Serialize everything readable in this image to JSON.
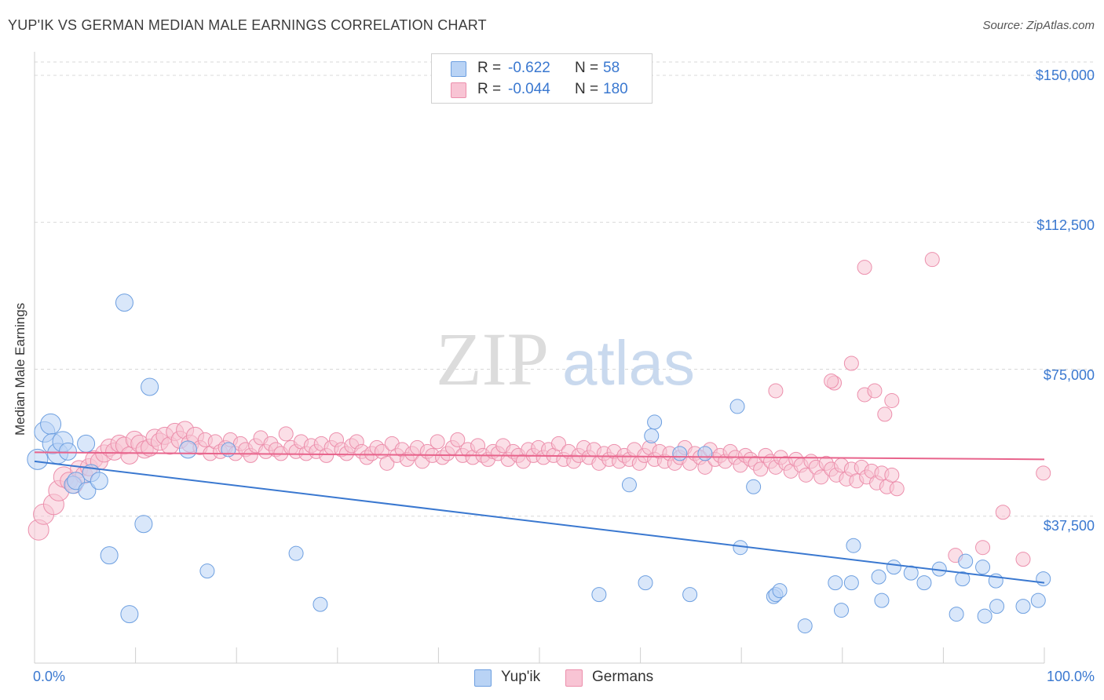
{
  "title": "YUP'IK VS GERMAN MEDIAN MALE EARNINGS CORRELATION CHART",
  "source": "Source: ZipAtlas.com",
  "watermark": {
    "zip": "ZIP",
    "atlas": "atlas"
  },
  "colors": {
    "blue": "#3a78d0",
    "blue_fill": "#b9d3f5",
    "blue_stroke": "#6d9fe0",
    "pink": "#e8648c",
    "pink_fill": "#f8c4d4",
    "pink_stroke": "#ec8fac",
    "grid": "#d8d8d8"
  },
  "legend": {
    "rows": [
      {
        "r_label": "R =",
        "r_value": "-0.622",
        "n_label": "N =",
        "n_value": "58"
      },
      {
        "r_label": "R =",
        "r_value": "-0.044",
        "n_label": "N =",
        "n_value": "180"
      }
    ]
  },
  "bottom_legend": [
    "Yup'ik",
    "Germans"
  ],
  "axes": {
    "ylabel": "Median Male Earnings",
    "x_min_label": "0.0%",
    "x_max_label": "100.0%",
    "y_tick_labels": [
      "$150,000",
      "$112,500",
      "$75,000",
      "$37,500"
    ]
  },
  "chart_data": {
    "type": "scatter",
    "xlabel": "",
    "ylabel": "Median Male Earnings",
    "xlim": [
      0,
      100
    ],
    "ylim": [
      0,
      150000
    ],
    "y_ticks": [
      37500,
      75000,
      112500,
      150000
    ],
    "grid": true,
    "legend_placement": "top-center",
    "series": [
      {
        "name": "Yup'ik",
        "R": -0.622,
        "N": 58,
        "trend": {
          "x": [
            0,
            100
          ],
          "y": [
            51500,
            20500
          ]
        },
        "points": [
          [
            0.3,
            52000
          ],
          [
            1,
            59000
          ],
          [
            1.6,
            61000
          ],
          [
            1.8,
            56000
          ],
          [
            2.3,
            53500
          ],
          [
            2.8,
            56500
          ],
          [
            3.3,
            54000
          ],
          [
            3.8,
            45500
          ],
          [
            4.1,
            46500
          ],
          [
            5.1,
            56000
          ],
          [
            5.2,
            44000
          ],
          [
            5.6,
            48500
          ],
          [
            6.4,
            46500
          ],
          [
            7.4,
            27500
          ],
          [
            8.9,
            92000
          ],
          [
            9.4,
            12500
          ],
          [
            10.8,
            35500
          ],
          [
            11.4,
            70500
          ],
          [
            15.2,
            54500
          ],
          [
            17.1,
            23500
          ],
          [
            19.2,
            54500
          ],
          [
            25.9,
            28000
          ],
          [
            28.3,
            15000
          ],
          [
            55.9,
            17500
          ],
          [
            58.9,
            45500
          ],
          [
            60.5,
            20500
          ],
          [
            61.1,
            58000
          ],
          [
            61.4,
            61500
          ],
          [
            63.9,
            53500
          ],
          [
            64.9,
            17500
          ],
          [
            66.4,
            53500
          ],
          [
            69.9,
            29500
          ],
          [
            69.6,
            65500
          ],
          [
            71.2,
            45000
          ],
          [
            73.2,
            17000
          ],
          [
            73.4,
            17500
          ],
          [
            73.8,
            18500
          ],
          [
            76.3,
            9500
          ],
          [
            79.3,
            20500
          ],
          [
            79.9,
            13500
          ],
          [
            80.9,
            20500
          ],
          [
            81.1,
            30000
          ],
          [
            83.6,
            22000
          ],
          [
            83.9,
            16000
          ],
          [
            85.1,
            24500
          ],
          [
            88.1,
            20500
          ],
          [
            89.6,
            24000
          ],
          [
            91.3,
            12500
          ],
          [
            91.9,
            21500
          ],
          [
            93.9,
            24500
          ],
          [
            94.1,
            12000
          ],
          [
            95.2,
            21000
          ],
          [
            95.3,
            14500
          ],
          [
            97.9,
            14500
          ],
          [
            99.4,
            16000
          ],
          [
            99.9,
            21500
          ],
          [
            92.2,
            26000
          ],
          [
            86.8,
            23000
          ]
        ]
      },
      {
        "name": "Germans",
        "R": -0.044,
        "N": 180,
        "trend": {
          "x": [
            0,
            100
          ],
          "y": [
            53800,
            52000
          ]
        },
        "points": [
          [
            0.4,
            34000
          ],
          [
            0.9,
            38000
          ],
          [
            1.9,
            40500
          ],
          [
            2.4,
            44000
          ],
          [
            2.9,
            47500
          ],
          [
            3.4,
            46500
          ],
          [
            3.9,
            45500
          ],
          [
            4.4,
            49500
          ],
          [
            4.9,
            48000
          ],
          [
            5.4,
            50000
          ],
          [
            5.9,
            52000
          ],
          [
            6.4,
            51500
          ],
          [
            6.9,
            53500
          ],
          [
            7.4,
            55000
          ],
          [
            7.9,
            54000
          ],
          [
            8.4,
            56000
          ],
          [
            8.9,
            55500
          ],
          [
            9.4,
            53000
          ],
          [
            9.9,
            57000
          ],
          [
            10.4,
            56000
          ],
          [
            10.9,
            54500
          ],
          [
            11.4,
            55000
          ],
          [
            11.9,
            57500
          ],
          [
            12.4,
            56500
          ],
          [
            12.9,
            58000
          ],
          [
            13.4,
            55500
          ],
          [
            13.9,
            59000
          ],
          [
            14.4,
            57000
          ],
          [
            14.9,
            59500
          ],
          [
            15.4,
            56000
          ],
          [
            15.9,
            58000
          ],
          [
            16.4,
            55000
          ],
          [
            16.9,
            57000
          ],
          [
            17.4,
            53500
          ],
          [
            17.9,
            56500
          ],
          [
            18.4,
            54000
          ],
          [
            18.9,
            55000
          ],
          [
            19.4,
            57000
          ],
          [
            19.9,
            53500
          ],
          [
            20.4,
            56000
          ],
          [
            20.9,
            54500
          ],
          [
            21.4,
            53000
          ],
          [
            21.9,
            55500
          ],
          [
            22.4,
            57500
          ],
          [
            22.9,
            54000
          ],
          [
            23.4,
            56000
          ],
          [
            23.9,
            54500
          ],
          [
            24.4,
            53500
          ],
          [
            24.9,
            58500
          ],
          [
            25.4,
            55000
          ],
          [
            25.9,
            54000
          ],
          [
            26.4,
            56500
          ],
          [
            26.9,
            53500
          ],
          [
            27.4,
            55500
          ],
          [
            27.9,
            54000
          ],
          [
            28.4,
            56000
          ],
          [
            28.9,
            53000
          ],
          [
            29.4,
            55000
          ],
          [
            29.9,
            57000
          ],
          [
            30.4,
            54500
          ],
          [
            30.9,
            53500
          ],
          [
            31.4,
            55500
          ],
          [
            31.9,
            56500
          ],
          [
            32.4,
            54000
          ],
          [
            32.9,
            52500
          ],
          [
            33.4,
            53500
          ],
          [
            33.9,
            55000
          ],
          [
            34.4,
            54000
          ],
          [
            34.9,
            51000
          ],
          [
            35.4,
            56000
          ],
          [
            35.9,
            53000
          ],
          [
            36.4,
            54500
          ],
          [
            36.9,
            52000
          ],
          [
            37.4,
            53500
          ],
          [
            37.9,
            55000
          ],
          [
            38.4,
            51500
          ],
          [
            38.9,
            54000
          ],
          [
            39.4,
            53000
          ],
          [
            39.9,
            56500
          ],
          [
            40.4,
            52500
          ],
          [
            40.9,
            53500
          ],
          [
            41.4,
            55000
          ],
          [
            41.9,
            57000
          ],
          [
            42.4,
            53000
          ],
          [
            42.9,
            54500
          ],
          [
            43.4,
            52500
          ],
          [
            43.9,
            55500
          ],
          [
            44.4,
            53000
          ],
          [
            44.9,
            52000
          ],
          [
            45.4,
            54000
          ],
          [
            45.9,
            53500
          ],
          [
            46.4,
            55500
          ],
          [
            46.9,
            52000
          ],
          [
            47.4,
            54000
          ],
          [
            47.9,
            53000
          ],
          [
            48.4,
            51500
          ],
          [
            48.9,
            54500
          ],
          [
            49.4,
            53000
          ],
          [
            49.9,
            55000
          ],
          [
            50.4,
            52500
          ],
          [
            50.9,
            54500
          ],
          [
            51.4,
            53000
          ],
          [
            51.9,
            56000
          ],
          [
            52.4,
            52000
          ],
          [
            52.9,
            54000
          ],
          [
            53.4,
            51500
          ],
          [
            53.9,
            53000
          ],
          [
            54.4,
            55000
          ],
          [
            54.9,
            52500
          ],
          [
            55.4,
            54500
          ],
          [
            55.9,
            51000
          ],
          [
            56.4,
            53500
          ],
          [
            56.9,
            52000
          ],
          [
            57.4,
            54000
          ],
          [
            57.9,
            51500
          ],
          [
            58.4,
            53000
          ],
          [
            58.9,
            52000
          ],
          [
            59.4,
            54500
          ],
          [
            59.9,
            51000
          ],
          [
            60.4,
            53000
          ],
          [
            60.9,
            55000
          ],
          [
            61.4,
            52000
          ],
          [
            61.9,
            54000
          ],
          [
            62.4,
            51500
          ],
          [
            62.9,
            53500
          ],
          [
            63.4,
            51000
          ],
          [
            63.9,
            52500
          ],
          [
            64.4,
            55000
          ],
          [
            64.9,
            51000
          ],
          [
            65.4,
            53500
          ],
          [
            65.9,
            52500
          ],
          [
            66.4,
            50000
          ],
          [
            66.9,
            54500
          ],
          [
            67.4,
            52000
          ],
          [
            67.9,
            53000
          ],
          [
            68.4,
            51500
          ],
          [
            68.9,
            54000
          ],
          [
            69.4,
            52500
          ],
          [
            69.9,
            50500
          ],
          [
            70.4,
            53000
          ],
          [
            70.9,
            52000
          ],
          [
            71.4,
            51000
          ],
          [
            71.9,
            49500
          ],
          [
            72.4,
            53000
          ],
          [
            72.9,
            51500
          ],
          [
            73.4,
            50000
          ],
          [
            73.9,
            52500
          ],
          [
            74.4,
            51000
          ],
          [
            74.9,
            49000
          ],
          [
            75.4,
            52000
          ],
          [
            75.9,
            50500
          ],
          [
            76.4,
            48000
          ],
          [
            76.9,
            51500
          ],
          [
            77.4,
            50000
          ],
          [
            77.9,
            47500
          ],
          [
            78.4,
            51000
          ],
          [
            78.9,
            49500
          ],
          [
            79.4,
            48000
          ],
          [
            79.9,
            50500
          ],
          [
            80.4,
            47000
          ],
          [
            80.9,
            49500
          ],
          [
            81.4,
            46500
          ],
          [
            81.9,
            50000
          ],
          [
            82.4,
            47500
          ],
          [
            82.9,
            49000
          ],
          [
            83.4,
            46000
          ],
          [
            83.9,
            48500
          ],
          [
            84.4,
            45000
          ],
          [
            84.9,
            48000
          ],
          [
            85.4,
            44500
          ],
          [
            79.2,
            71500
          ],
          [
            82.2,
            68500
          ],
          [
            80.9,
            76500
          ],
          [
            83.2,
            69500
          ],
          [
            84.9,
            67000
          ],
          [
            73.4,
            69500
          ],
          [
            78.9,
            72000
          ],
          [
            84.2,
            63500
          ],
          [
            82.2,
            101000
          ],
          [
            88.9,
            103000
          ],
          [
            91.2,
            27500
          ],
          [
            97.9,
            26500
          ],
          [
            93.9,
            29500
          ],
          [
            95.9,
            38500
          ],
          [
            99.9,
            48500
          ]
        ]
      }
    ]
  }
}
